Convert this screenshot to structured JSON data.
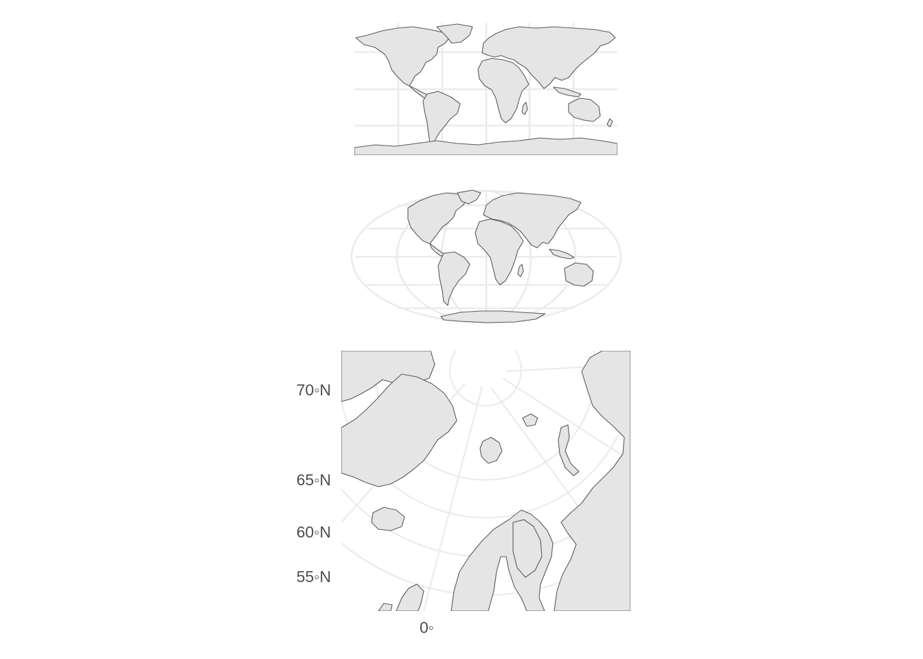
{
  "panels": [
    {
      "name": "equirectangular-world",
      "projection": "equirectangular",
      "extent": "world"
    },
    {
      "name": "mollweide-world",
      "projection": "mollweide",
      "extent": "world"
    },
    {
      "name": "polar-north-atlantic",
      "projection": "polar-azimuthal",
      "extent": "north-atlantic-arctic"
    }
  ],
  "axis": {
    "y_labels": [
      {
        "id": "lat70",
        "text": "70◦N",
        "value": 70
      },
      {
        "id": "lat65",
        "text": "65◦N",
        "value": 65
      },
      {
        "id": "lat60",
        "text": "60◦N",
        "value": 60
      },
      {
        "id": "lat55",
        "text": "55◦N",
        "value": 55
      }
    ],
    "x_labels": [
      {
        "id": "lon0",
        "text": "0◦",
        "value": 0
      }
    ]
  },
  "colors": {
    "land_fill": "#e5e5e5",
    "border": "#595959",
    "graticule": "#ebebeb",
    "background": "#ffffff",
    "label": "#4d4d4d"
  }
}
